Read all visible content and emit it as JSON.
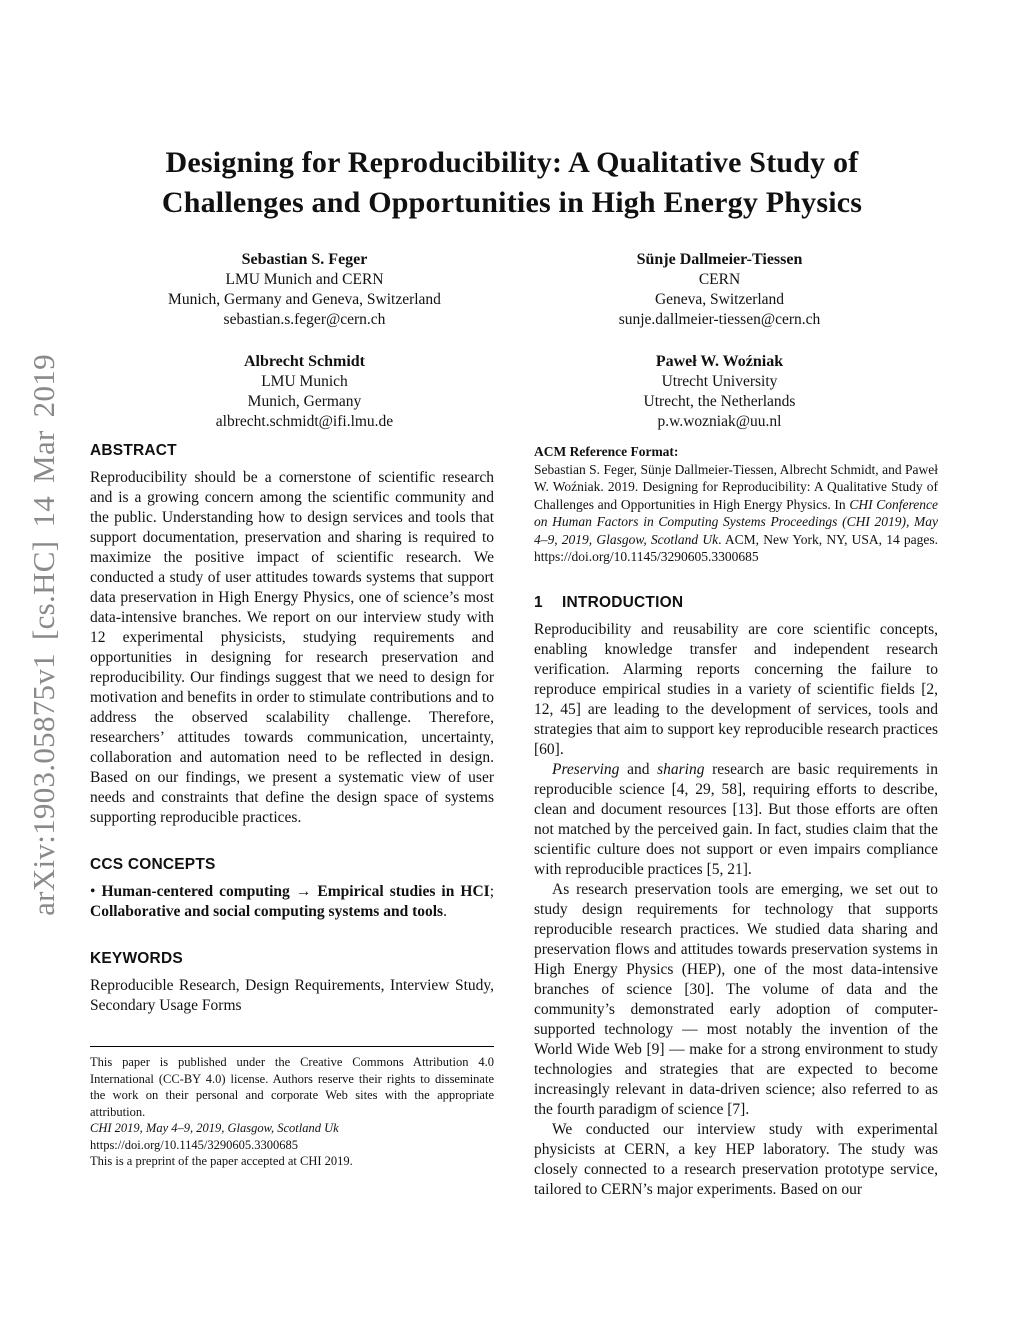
{
  "watermark": {
    "text": "arXiv:1903.05875v1 [cs.HC] 14 Mar 2019"
  },
  "title": {
    "line1": "Designing for Reproducibility: A Qualitative Study of",
    "line2": "Challenges and Opportunities in High Energy Physics"
  },
  "authors": [
    {
      "name": "Sebastian S. Feger",
      "affil1": "LMU Munich and CERN",
      "affil2": "Munich, Germany and Geneva, Switzerland",
      "email": "sebastian.s.feger@cern.ch"
    },
    {
      "name": "Sünje Dallmeier-Tiessen",
      "affil1": "CERN",
      "affil2": "Geneva, Switzerland",
      "email": "sunje.dallmeier-tiessen@cern.ch"
    },
    {
      "name": "Albrecht Schmidt",
      "affil1": "LMU Munich",
      "affil2": "Munich, Germany",
      "email": "albrecht.schmidt@ifi.lmu.de"
    },
    {
      "name": "Paweł W. Woźniak",
      "affil1": "Utrecht University",
      "affil2": "Utrecht, the Netherlands",
      "email": "p.w.wozniak@uu.nl"
    }
  ],
  "abstract": {
    "heading": "ABSTRACT",
    "text": "Reproducibility should be a cornerstone of scientific research and is a growing concern among the scientific community and the public. Understanding how to design services and tools that support documentation, preservation and sharing is required to maximize the positive impact of scientific research. We conducted a study of user attitudes towards systems that support data preservation in High Energy Physics, one of science’s most data-intensive branches. We report on our interview study with 12 experimental physicists, studying requirements and opportunities in designing for research preservation and reproducibility. Our findings suggest that we need to design for motivation and benefits in order to stimulate contributions and to address the observed scalability challenge. Therefore, researchers’ attitudes towards communication, uncertainty, collaboration and automation need to be reflected in design. Based on our findings, we present a systematic view of user needs and constraints that define the design space of systems supporting reproducible practices."
  },
  "ccs": {
    "heading": "CCS CONCEPTS",
    "bullet": "• ",
    "concept1": "Human-centered computing",
    "arrow": " → ",
    "concept2": "Empirical studies in HCI",
    "sep": "; ",
    "concept3": "Collaborative and social computing systems and tools",
    "period": "."
  },
  "keywords": {
    "heading": "KEYWORDS",
    "text": "Reproducible Research, Design Requirements, Interview Study, Secondary Usage Forms"
  },
  "footnote": {
    "license": "This paper is published under the Creative Commons Attribution 4.0 International (CC-BY 4.0) license. Authors reserve their rights to disseminate the work on their personal and corporate Web sites with the appropriate attribution.",
    "venue": "CHI 2019, May 4–9, 2019, Glasgow, Scotland Uk",
    "doi": "https://doi.org/10.1145/3290605.3300685",
    "preprint": "This is a preprint of the paper accepted at CHI 2019."
  },
  "acm_ref": {
    "heading": "ACM Reference Format:",
    "seg1": "Sebastian S. Feger, Sünje Dallmeier-Tiessen, Albrecht Schmidt, and Paweł W. Woźniak. 2019. Designing for Reproducibility: A Qualitative Study of Challenges and Opportunities in High Energy Physics. In ",
    "seg2_italic": "CHI Conference on Human Factors in Computing Systems Proceedings (CHI 2019), May 4–9, 2019, Glasgow, Scotland Uk",
    "seg3": ". ACM, New York, NY, USA, 14 pages. https://doi.org/10.1145/3290605.3300685"
  },
  "introduction": {
    "number": "1",
    "heading": "INTRODUCTION",
    "p1": "Reproducibility and reusability are core scientific concepts, enabling knowledge transfer and independent research verification. Alarming reports concerning the failure to reproduce empirical studies in a variety of scientific fields [2, 12, 45] are leading to the development of services, tools and strategies that aim to support key reproducible research practices [60].",
    "p2_it1": "Preserving",
    "p2_mid": " and ",
    "p2_it2": "sharing",
    "p2_rest": " research are basic requirements in reproducible science [4, 29, 58], requiring efforts to describe, clean and document resources [13]. But those efforts are often not matched by the perceived gain. In fact, studies claim that the scientific culture does not support or even impairs compliance with reproducible practices [5, 21].",
    "p3": "As research preservation tools are emerging, we set out to study design requirements for technology that supports reproducible research practices. We studied data sharing and preservation flows and attitudes towards preservation systems in High Energy Physics (HEP), one of the most data-intensive branches of science [30]. The volume of data and the community’s demonstrated early adoption of computer-supported technology — most notably the invention of the World Wide Web [9] — make for a strong environment to study technologies and strategies that are expected to become increasingly relevant in data-driven science; also referred to as the fourth paradigm of science [7].",
    "p4": "We conducted our interview study with experimental physicists at CERN, a key HEP laboratory. The study was closely connected to a research preservation prototype service, tailored to CERN’s major experiments. Based on our"
  }
}
